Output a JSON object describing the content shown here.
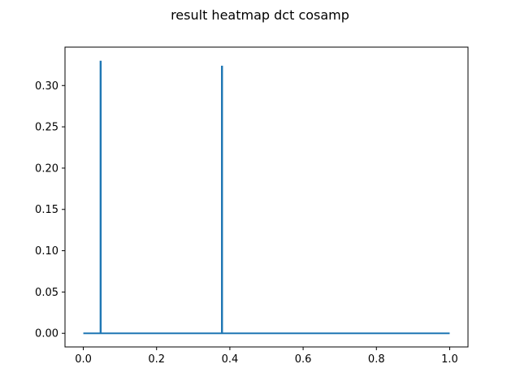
{
  "figure": {
    "title": "result heatmap dct cosamp"
  },
  "chart_data": {
    "type": "line",
    "title": "result heatmap dct cosamp",
    "xlabel": "",
    "ylabel": "",
    "xlim": [
      -0.05,
      1.05
    ],
    "ylim": [
      -0.0165,
      0.3465
    ],
    "x_ticks": [
      0.0,
      0.2,
      0.4,
      0.6,
      0.8,
      1.0
    ],
    "x_tick_labels": [
      "0.0",
      "0.2",
      "0.4",
      "0.6",
      "0.8",
      "1.0"
    ],
    "y_ticks": [
      0.0,
      0.05,
      0.1,
      0.15,
      0.2,
      0.25,
      0.3
    ],
    "y_tick_labels": [
      "0.00",
      "0.05",
      "0.10",
      "0.15",
      "0.20",
      "0.25",
      "0.30"
    ],
    "grid": false,
    "legend": "none",
    "series": [
      {
        "color": "#1f77b4",
        "x": [
          0.0,
          0.0468,
          0.0468,
          0.0478,
          0.0478,
          0.378,
          0.378,
          0.379,
          0.379,
          1.0
        ],
        "y": [
          0.0,
          0.0,
          0.329,
          0.329,
          0.0,
          0.0,
          0.323,
          0.323,
          0.0,
          0.0
        ]
      }
    ]
  }
}
